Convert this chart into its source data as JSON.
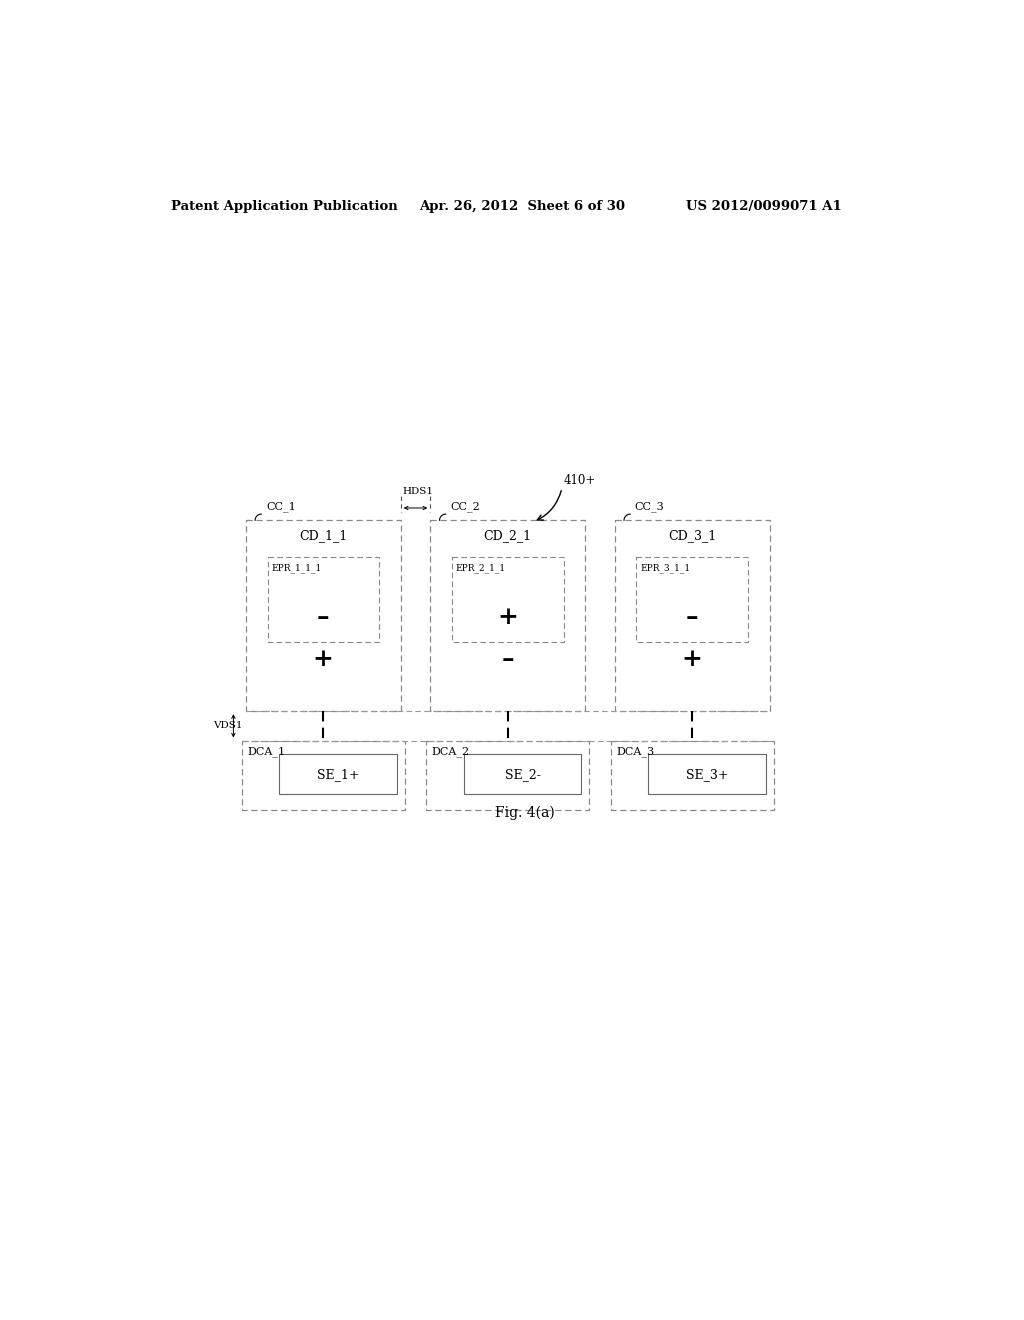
{
  "bg_color": "#ffffff",
  "header_left": "Patent Application Publication",
  "header_mid": "Apr. 26, 2012  Sheet 6 of 30",
  "header_right": "US 2012/0099071 A1",
  "fig_label": "Fig. 4(a)",
  "label_410": "410+",
  "label_HDS1": "HDS1",
  "label_VDS1": "VDS1",
  "columns": [
    {
      "cc_label": "CC_1",
      "cd_label": "CD_1_1",
      "epr_label": "EPR_1_1_1",
      "epr_sign": "–",
      "cd_sign": "+",
      "dca_label": "DCA_1",
      "se_label": "SE_1+"
    },
    {
      "cc_label": "CC_2",
      "cd_label": "CD_2_1",
      "epr_label": "EPR_2_1_1",
      "epr_sign": "+",
      "cd_sign": "–",
      "dca_label": "DCA_2",
      "se_label": "SE_2-"
    },
    {
      "cc_label": "CC_3",
      "cd_label": "CD_3_1",
      "epr_label": "EPR_3_1_1",
      "epr_sign": "–",
      "cd_sign": "+",
      "dca_label": "DCA_3",
      "se_label": "SE_3+"
    }
  ]
}
